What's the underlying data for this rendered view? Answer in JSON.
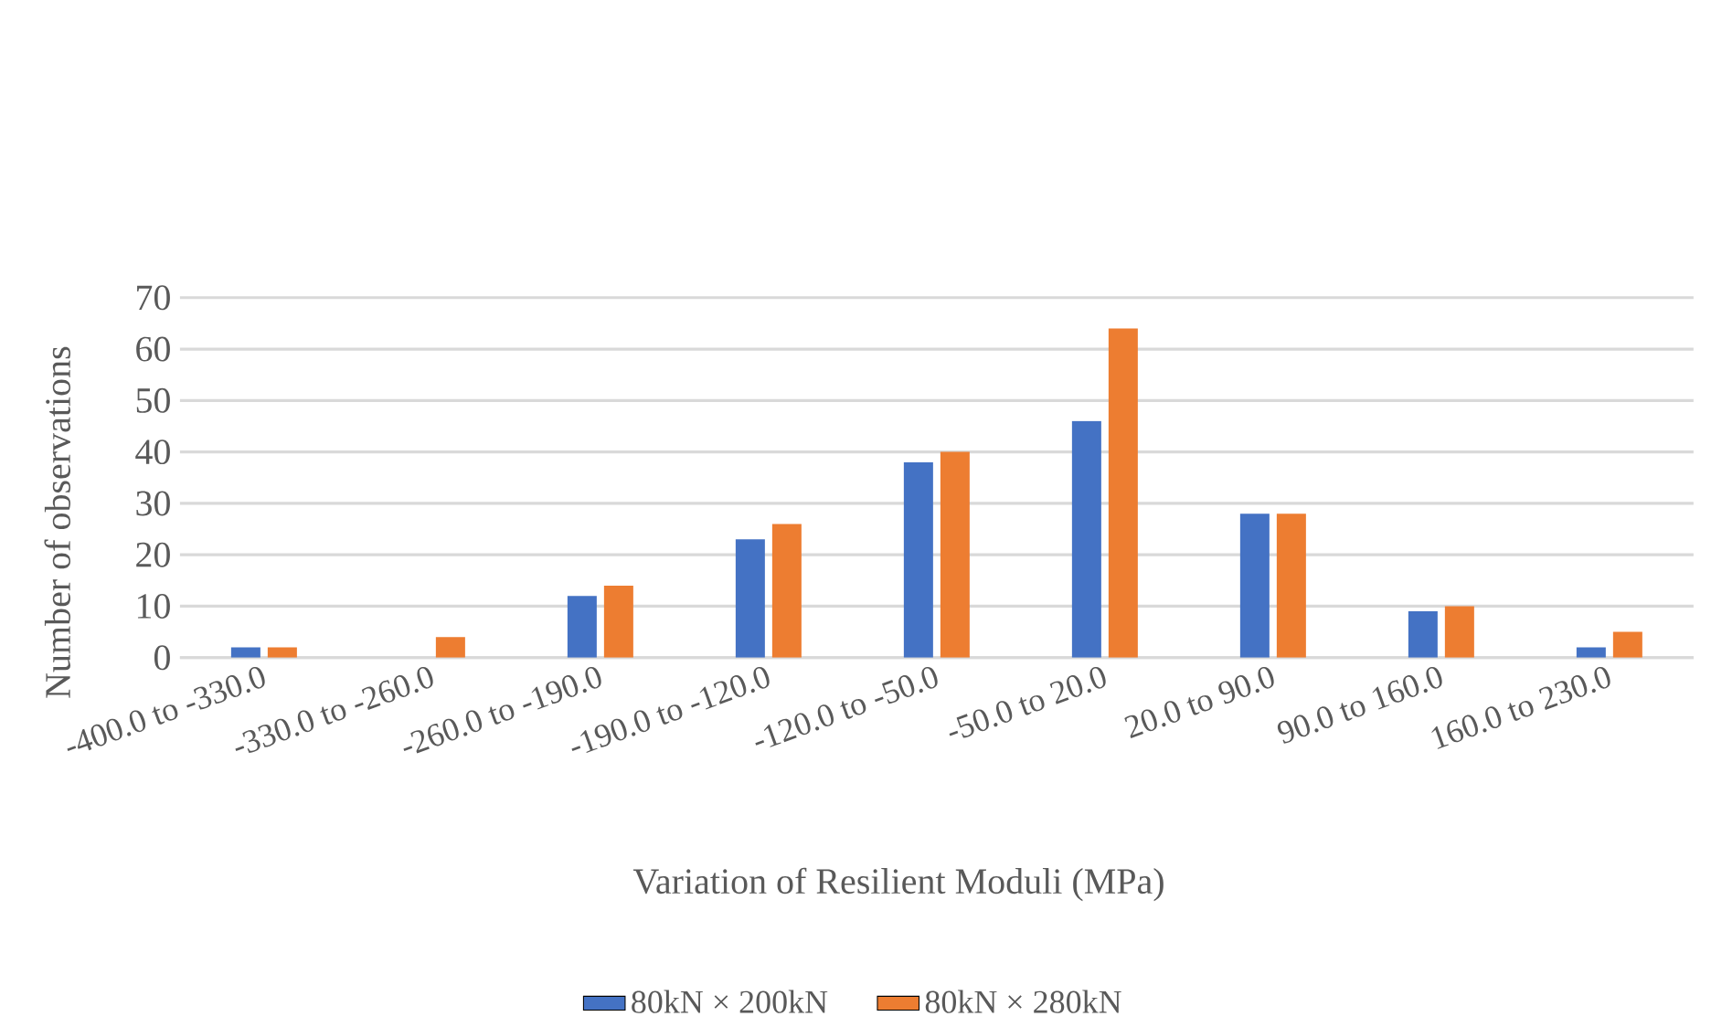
{
  "chart_data": {
    "type": "bar",
    "xlabel": "Variation of Resilient Moduli (MPa)",
    "ylabel": "Number of observations",
    "categories": [
      "-400.0 to -330.0",
      "-330.0 to -260.0",
      "-260.0 to -190.0",
      "-190.0 to -120.0",
      "-120.0 to -50.0",
      "-50.0 to 20.0",
      "20.0 to 90.0",
      "90.0 to 160.0",
      "160.0 to 230.0"
    ],
    "series": [
      {
        "name": "80kN × 200kN",
        "color": "#4472c4",
        "values": [
          2,
          0,
          12,
          23,
          38,
          46,
          28,
          9,
          2
        ]
      },
      {
        "name": "80kN × 280kN",
        "color": "#ed7d31",
        "values": [
          2,
          4,
          14,
          26,
          40,
          64,
          28,
          10,
          5
        ]
      }
    ],
    "ylim": [
      0,
      70
    ],
    "yticks": [
      0,
      10,
      20,
      30,
      40,
      50,
      60,
      70
    ],
    "grid": "y",
    "legend": "bottom"
  }
}
